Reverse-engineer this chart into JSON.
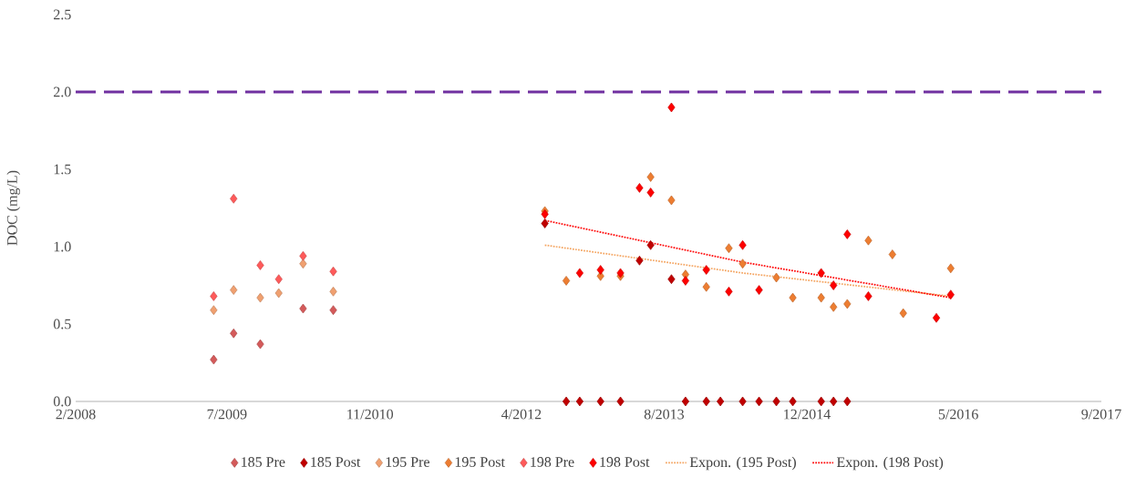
{
  "chart_data": {
    "type": "scatter",
    "ylabel": "DOC (mg/L)",
    "xlim": [
      "2008-02-01",
      "2017-09-01"
    ],
    "xticks": [
      {
        "value": "2008-02-01",
        "label": "2/2008"
      },
      {
        "value": "2009-07-01",
        "label": "7/2009"
      },
      {
        "value": "2010-11-01",
        "label": "11/2010"
      },
      {
        "value": "2012-04-01",
        "label": "4/2012"
      },
      {
        "value": "2013-08-01",
        "label": "8/2013"
      },
      {
        "value": "2014-12-01",
        "label": "12/2014"
      },
      {
        "value": "2016-05-01",
        "label": "5/2016"
      },
      {
        "value": "2017-09-01",
        "label": "9/2017"
      }
    ],
    "ylim": [
      0,
      2.5
    ],
    "yticks": [
      {
        "value": 0,
        "label": "0.0"
      },
      {
        "value": 0.5,
        "label": "0.5"
      },
      {
        "value": 1,
        "label": "1.0"
      },
      {
        "value": 1.5,
        "label": "1.5"
      },
      {
        "value": 2,
        "label": "2.0"
      },
      {
        "value": 2.5,
        "label": "2.5"
      }
    ],
    "grid": false,
    "legend": "bottom",
    "marker": "diamond",
    "ref_lines": [
      {
        "axis": "y",
        "value": 2.0,
        "color": "#7030a0",
        "line_style": "dashed"
      }
    ],
    "series": [
      {
        "name": "185 Pre",
        "color": "#d45a5a",
        "x": [
          "2009-05-17",
          "2009-07-24",
          "2009-10-23",
          "2010-03-18",
          "2010-06-29"
        ],
        "values": [
          0.27,
          0.44,
          0.37,
          0.6,
          0.59
        ]
      },
      {
        "name": "185 Post",
        "color": "#c00000",
        "x": [
          "2012-06-20",
          "2012-09-01",
          "2012-10-17",
          "2012-12-27",
          "2013-03-05",
          "2013-05-09",
          "2013-06-16",
          "2013-08-26",
          "2013-10-13",
          "2013-12-23",
          "2014-02-09",
          "2014-04-26",
          "2014-06-21",
          "2014-08-19",
          "2014-10-14",
          "2015-01-19",
          "2015-03-02",
          "2015-04-18"
        ],
        "values": [
          1.15,
          0,
          0,
          0,
          0,
          0.91,
          1.01,
          0.79,
          0,
          0,
          0,
          0,
          0,
          0,
          0,
          0,
          0,
          0
        ]
      },
      {
        "name": "195 Pre",
        "color": "#f0a070",
        "x": [
          "2009-05-17",
          "2009-07-24",
          "2009-10-23",
          "2009-12-25",
          "2010-03-18",
          "2010-06-29"
        ],
        "values": [
          0.59,
          0.72,
          0.67,
          0.7,
          0.89,
          0.71
        ]
      },
      {
        "name": "195 Post",
        "color": "#ed7d31",
        "x": [
          "2012-06-20",
          "2012-09-01",
          "2012-10-17",
          "2012-12-27",
          "2013-03-05",
          "2013-06-16",
          "2013-08-26",
          "2013-10-13",
          "2013-12-23",
          "2014-03-10",
          "2014-04-26",
          "2014-08-19",
          "2014-10-14",
          "2015-01-19",
          "2015-03-02",
          "2015-04-18",
          "2015-06-29",
          "2015-09-19",
          "2015-10-26",
          "2016-04-05"
        ],
        "values": [
          1.23,
          0.78,
          null,
          0.81,
          0.81,
          1.45,
          1.3,
          0.82,
          0.74,
          0.99,
          0.89,
          0.8,
          0.67,
          0.67,
          0.61,
          0.63,
          1.04,
          0.95,
          0.57,
          0.86
        ]
      },
      {
        "name": "198 Pre",
        "color": "#ff5a5a",
        "x": [
          "2009-05-17",
          "2009-07-24",
          "2009-10-23",
          "2009-12-25",
          "2010-03-18",
          "2010-06-29"
        ],
        "values": [
          0.68,
          1.31,
          0.88,
          0.79,
          0.94,
          0.84
        ]
      },
      {
        "name": "198 Post",
        "color": "#ff0000",
        "x": [
          "2012-06-20",
          "2012-10-17",
          "2012-12-27",
          "2013-03-05",
          "2013-05-09",
          "2013-06-16",
          "2013-08-26",
          "2013-10-13",
          "2013-12-23",
          "2014-03-10",
          "2014-04-26",
          "2014-06-21",
          "2015-01-19",
          "2015-03-02",
          "2015-04-18",
          "2015-06-29",
          "2016-02-16",
          "2016-04-05"
        ],
        "values": [
          1.21,
          0.83,
          0.85,
          0.83,
          1.38,
          1.35,
          1.9,
          0.78,
          0.85,
          0.71,
          1.01,
          0.72,
          0.83,
          0.75,
          1.08,
          0.68,
          0.54,
          0.69
        ]
      },
      {
        "name": "Expon. (195 Post)",
        "type": "line",
        "marker": "none",
        "line_style": "dotted",
        "color": "#f4a460",
        "x": [
          "2012-06-20",
          "2014-04-26",
          "2016-04-05"
        ],
        "values": [
          1.01,
          0.83,
          0.68
        ]
      },
      {
        "name": "Expon. (198 Post)",
        "type": "line",
        "marker": "none",
        "line_style": "dotted",
        "color": "#ff0000",
        "x": [
          "2012-06-20",
          "2014-04-26",
          "2016-04-05"
        ],
        "values": [
          1.17,
          0.9,
          0.67
        ]
      }
    ]
  }
}
